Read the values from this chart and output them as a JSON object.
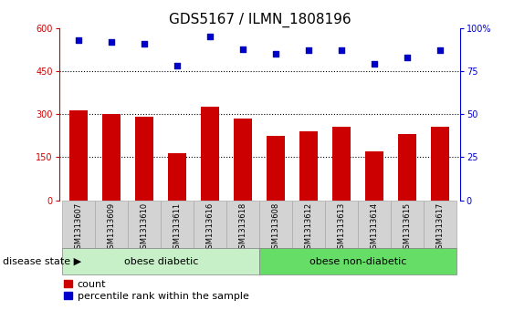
{
  "title": "GDS5167 / ILMN_1808196",
  "samples": [
    "GSM1313607",
    "GSM1313609",
    "GSM1313610",
    "GSM1313611",
    "GSM1313616",
    "GSM1313618",
    "GSM1313608",
    "GSM1313612",
    "GSM1313613",
    "GSM1313614",
    "GSM1313615",
    "GSM1313617"
  ],
  "counts": [
    315,
    300,
    290,
    165,
    325,
    285,
    225,
    240,
    255,
    170,
    230,
    255
  ],
  "percentile_ranks": [
    93,
    92,
    91,
    78,
    95,
    88,
    85,
    87,
    87,
    79,
    83,
    87
  ],
  "ylim_left": [
    0,
    600
  ],
  "ylim_right": [
    0,
    100
  ],
  "yticks_left": [
    0,
    150,
    300,
    450,
    600
  ],
  "yticks_right": [
    0,
    25,
    50,
    75,
    100
  ],
  "bar_color": "#cc0000",
  "dot_color": "#0000cc",
  "group1_label": "obese diabetic",
  "group2_label": "obese non-diabetic",
  "group1_count": 6,
  "group2_count": 6,
  "group1_bg_color": "#c8f0c8",
  "group2_bg_color": "#66dd66",
  "tick_bg_color": "#d3d3d3",
  "tick_border_color": "#aaaaaa",
  "legend_count_label": "count",
  "legend_pct_label": "percentile rank within the sample",
  "disease_state_label": "disease state",
  "title_fontsize": 11,
  "tick_fontsize": 7,
  "legend_fontsize": 8
}
